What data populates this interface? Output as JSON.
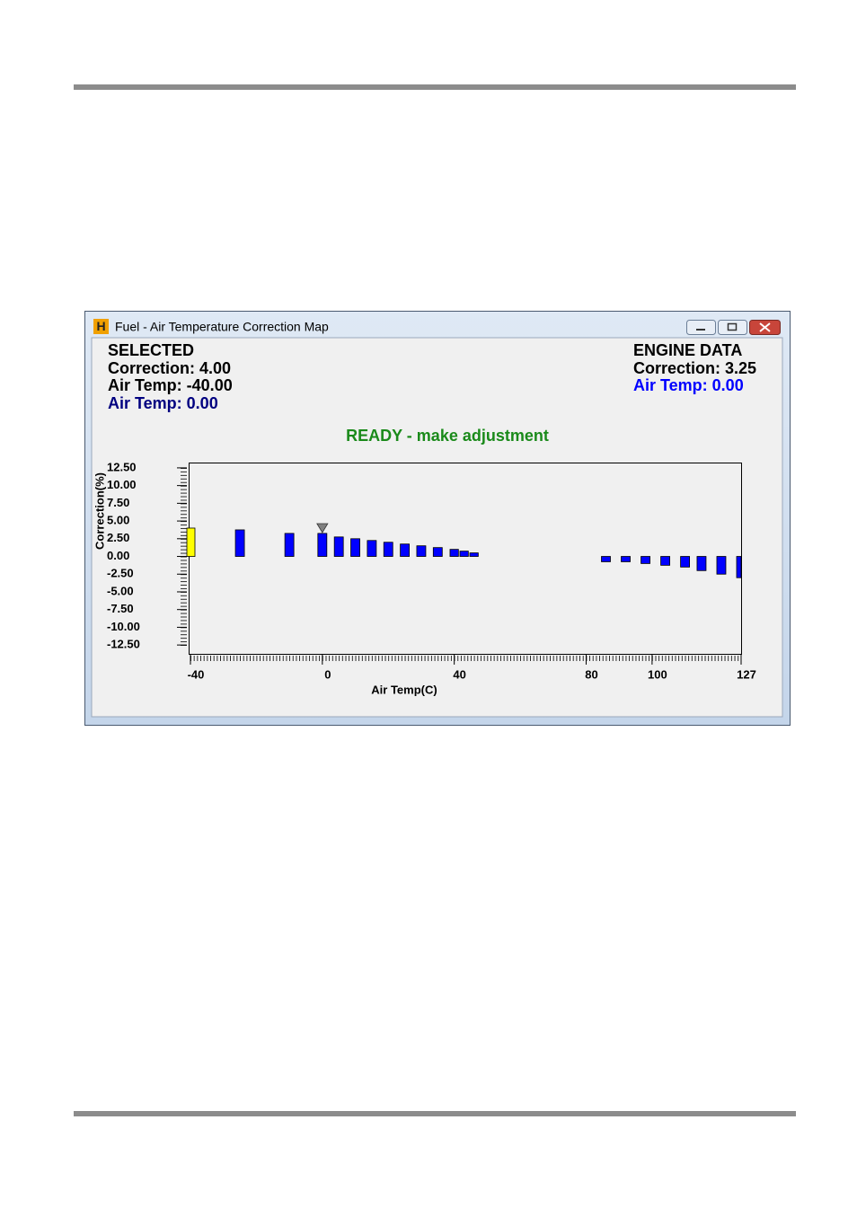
{
  "window": {
    "title": "Fuel - Air Temperature Correction Map"
  },
  "selected": {
    "heading": "SELECTED",
    "correction": "Correction: 4.00",
    "air_temp": "Air Temp: -40.00",
    "engine_air_temp": "Air Temp: 0.00"
  },
  "engine_data": {
    "heading": "ENGINE DATA",
    "correction": "Correction: 3.25",
    "air_temp": "Air Temp: 0.00"
  },
  "status": "READY - make adjustment",
  "chart_data": {
    "type": "bar",
    "xlabel": "Air Temp(C)",
    "ylabel": "Correction(%)",
    "x": [
      -40,
      -25,
      -10,
      0,
      5,
      10,
      15,
      20,
      25,
      30,
      35,
      40,
      43,
      46,
      50,
      55,
      60,
      65,
      70,
      75,
      80,
      86,
      92,
      98,
      104,
      110,
      115,
      121,
      127
    ],
    "values": [
      4,
      3.75,
      3.25,
      3.25,
      2.75,
      2.5,
      2.25,
      2,
      1.75,
      1.5,
      1.25,
      1,
      0.75,
      0.5,
      0,
      0,
      0,
      0,
      0,
      0,
      0,
      -0.75,
      -0.75,
      -1,
      -1.25,
      -1.5,
      -2,
      -2.5,
      -3
    ],
    "colors": [
      "#ffff00",
      "#0000ff",
      "#0000ff",
      "#0000ff",
      "#0000ff",
      "#0000ff",
      "#0000ff",
      "#0000ff",
      "#0000ff",
      "#0000ff",
      "#0000ff",
      "#0000ff",
      "#0000ff",
      "#0000ff",
      "#0000ff",
      "#0000ff",
      "#0000ff",
      "#0000ff",
      "#0000ff",
      "#0000ff",
      "#0000ff",
      "#0000ff",
      "#0000ff",
      "#0000ff",
      "#0000ff",
      "#0000ff",
      "#0000ff",
      "#0000ff",
      "#0000ff"
    ],
    "marker": {
      "x": 0,
      "color": "#808080"
    },
    "xlim": [
      -40,
      127
    ],
    "xticks": [
      -40,
      0,
      40,
      80,
      100,
      127
    ],
    "ylim": [
      -13.75,
      13.25
    ],
    "yticks": [
      {
        "value": 12.5,
        "label": "12.50"
      },
      {
        "value": 10,
        "label": "10.00"
      },
      {
        "value": 7.5,
        "label": "7.50"
      },
      {
        "value": 5,
        "label": "5.00"
      },
      {
        "value": 2.5,
        "label": "2.50"
      },
      {
        "value": 0,
        "label": "0.00"
      },
      {
        "value": -2.5,
        "label": "-2.50"
      },
      {
        "value": -5,
        "label": "-5.00"
      },
      {
        "value": -7.5,
        "label": "-7.50"
      },
      {
        "value": -10,
        "label": "-10.00"
      },
      {
        "value": -12.5,
        "label": "-12.50"
      }
    ]
  }
}
